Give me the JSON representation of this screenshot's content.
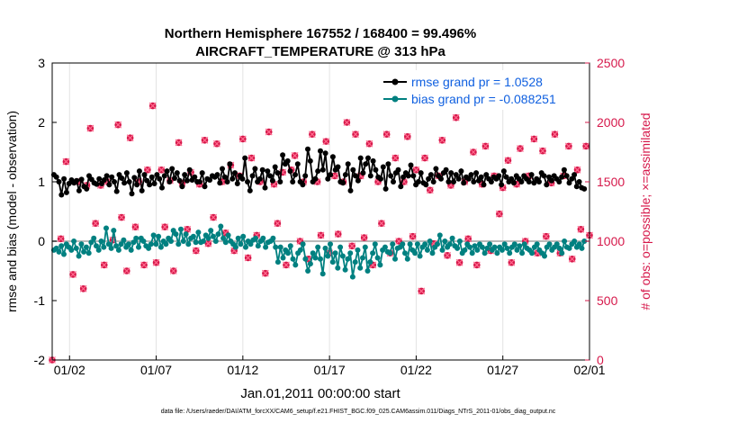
{
  "chart_data": {
    "type": "line",
    "title_line1": "Northern Hemisphere 167552 / 168400 = 99.496%",
    "title_line2": "AIRCRAFT_TEMPERATURE @ 313 hPa",
    "ylabel_left": "rmse and bias (model - observation)",
    "ylabel_right": "# of obs: o=possible; ×=assimilated",
    "xlabel": "Jan.01,2011 00:00:00 start",
    "footnote": "data file: /Users/raeder/DAI/ATM_forcXX/CAM6_setup/f.e21.FHIST_BGC.f09_025.CAM6assim.011/Diags_NTrS_2011-01/obs_diag_output.nc",
    "xlim": [
      0,
      31
    ],
    "ylim_left": [
      -2,
      3
    ],
    "ylim_right": [
      0,
      2500
    ],
    "x_ticks": [
      1,
      6,
      11,
      16,
      21,
      26,
      31
    ],
    "x_tick_labels": [
      "01/02",
      "01/07",
      "01/12",
      "01/17",
      "01/22",
      "01/27",
      "02/01"
    ],
    "y_left_ticks": [
      "3",
      "2",
      "1",
      "0",
      "-1",
      "-2"
    ],
    "y_left_tick_values": [
      3,
      2,
      1,
      0,
      -1,
      -2
    ],
    "y_right_ticks": [
      "2500",
      "2000",
      "1500",
      "1000",
      "500",
      "0"
    ],
    "y_right_tick_values": [
      2500,
      2000,
      1500,
      1000,
      500,
      0
    ],
    "legend_position": "top-right",
    "series": [
      {
        "name": "rmse grand pr = 1.0528",
        "axis": "left",
        "color": "#000000",
        "values": [
          1.12,
          1.08,
          1.0,
          0.78,
          1.05,
          0.82,
          0.97,
          1.03,
          0.98,
          1.02,
          0.85,
          1.04,
          0.92,
          0.88,
          1.1,
          1.04,
          0.98,
          0.96,
          1.05,
          0.97,
          1.03,
          1.1,
          0.95,
          1.08,
          1.0,
          0.84,
          1.12,
          1.06,
          0.98,
          1.15,
          1.0,
          0.8,
          1.07,
          0.95,
          1.18,
          0.85,
          1.12,
          1.02,
          0.95,
          1.08,
          0.97,
          1.12,
          1.05,
          0.9,
          1.1,
          1.18,
          1.0,
          1.22,
          1.06,
          1.15,
          1.02,
          0.92,
          1.12,
          1.02,
          1.2,
          1.03,
          1.08,
          1.0,
          1.0,
          1.15,
          0.92,
          1.05,
          1.03,
          1.1,
          1.08,
          1.12,
          0.98,
          1.22,
          1.08,
          1.0,
          1.3,
          1.05,
          1.15,
          0.97,
          1.1,
          1.05,
          1.4,
          1.0,
          0.85,
          1.1,
          1.22,
          1.0,
          1.05,
          1.2,
          0.9,
          1.18,
          1.1,
          1.02,
          1.25,
          1.15,
          1.0,
          1.45,
          1.3,
          1.35,
          1.18,
          1.0,
          1.12,
          1.3,
          1.0,
          0.95,
          1.1,
          1.55,
          1.35,
          1.0,
          1.05,
          1.18,
          1.52,
          1.2,
          1.48,
          1.05,
          1.12,
          1.42,
          1.2,
          1.25,
          1.0,
          0.98,
          1.12,
          1.3,
          0.85,
          1.2,
          1.1,
          1.02,
          1.4,
          1.15,
          1.3,
          1.4,
          1.1,
          1.35,
          1.2,
          1.08,
          1.05,
          1.25,
          0.88,
          1.3,
          1.1,
          1.0,
          1.15,
          1.2,
          0.92,
          1.08,
          1.15,
          1.1,
          1.28,
          1.1,
          0.95,
          1.0,
          1.15,
          0.98,
          0.95,
          1.05,
          1.12,
          1.0,
          1.22,
          1.1,
          1.05,
          1.15,
          1.2,
          1.0,
          1.15,
          1.0,
          1.12,
          1.05,
          1.18,
          0.98,
          1.08,
          1.05,
          1.12,
          1.0,
          1.15,
          1.02,
          1.08,
          0.95,
          1.12,
          1.05,
          1.0,
          1.08,
          1.05,
          1.1,
          0.95,
          1.18,
          1.08,
          1.0,
          1.05,
          0.98,
          1.1,
          1.05,
          1.0,
          1.1,
          1.05,
          1.0,
          1.12,
          0.98,
          1.05,
          1.0,
          1.15,
          1.1,
          0.95,
          1.08,
          1.02,
          1.1,
          1.05,
          1.0,
          1.08,
          1.2,
          1.1,
          0.98,
          1.05,
          1.12,
          0.92,
          1.0,
          0.9,
          0.88
        ]
      },
      {
        "name": "bias grand pr = -0.088251",
        "axis": "left",
        "color": "#008080",
        "values": [
          -0.15,
          -0.12,
          -0.18,
          -0.08,
          -0.22,
          -0.05,
          -0.1,
          -0.15,
          0.0,
          -0.12,
          -0.25,
          -0.05,
          -0.18,
          -0.1,
          -0.2,
          -0.02,
          0.05,
          -0.08,
          -0.15,
          0.0,
          -0.1,
          0.22,
          -0.05,
          -0.12,
          0.18,
          -0.08,
          -0.15,
          -0.05,
          0.02,
          -0.1,
          -0.05,
          -0.15,
          -0.02,
          0.05,
          -0.1,
          0.05,
          0.0,
          -0.08,
          -0.12,
          -0.05,
          0.1,
          -0.05,
          0.08,
          -0.1,
          0.0,
          -0.05,
          0.05,
          0.0,
          0.18,
          0.12,
          -0.05,
          0.2,
          0.0,
          0.12,
          -0.05,
          0.05,
          0.08,
          -0.02,
          0.15,
          -0.02,
          0.0,
          0.1,
          0.05,
          0.18,
          0.08,
          0.0,
          0.12,
          0.25,
          0.05,
          -0.02,
          0.1,
          0.0,
          -0.05,
          -0.1,
          0.05,
          -0.05,
          0.08,
          -0.1,
          0.0,
          -0.05,
          0.02,
          0.05,
          -0.08,
          0.0,
          0.05,
          -0.1,
          -0.02,
          0.0,
          0.05,
          -0.1,
          -0.35,
          -0.1,
          -0.28,
          -0.15,
          -0.2,
          -0.08,
          -0.3,
          -0.4,
          -0.2,
          -0.15,
          -0.05,
          -0.3,
          -0.5,
          -0.38,
          -0.2,
          -0.28,
          -0.1,
          -0.3,
          -0.55,
          -0.12,
          -0.25,
          -0.05,
          -0.35,
          -0.2,
          -0.45,
          -0.1,
          -0.25,
          -0.48,
          -0.3,
          -0.2,
          -0.6,
          -0.35,
          -0.15,
          -0.45,
          -0.28,
          -0.1,
          -0.5,
          -0.35,
          -0.2,
          -0.05,
          -0.28,
          -0.4,
          -0.15,
          -0.1,
          -0.18,
          -0.2,
          -0.05,
          -0.3,
          -0.12,
          -0.1,
          -0.05,
          -0.2,
          -0.3,
          -0.05,
          -0.15,
          -0.2,
          -0.05,
          -0.25,
          -0.1,
          -0.05,
          -0.15,
          0.0,
          -0.2,
          -0.1,
          -0.05,
          0.1,
          -0.15,
          0.0,
          -0.1,
          -0.05,
          0.05,
          -0.08,
          -0.12,
          0.0,
          -0.2,
          -0.15,
          -0.05,
          -0.1,
          -0.2,
          -0.08,
          -0.15,
          -0.05,
          -0.1,
          -0.2,
          -0.12,
          -0.05,
          -0.15,
          -0.1,
          -0.2,
          -0.1,
          -0.15,
          -0.05,
          -0.12,
          -0.2,
          -0.1,
          -0.05,
          -0.15,
          -0.08,
          -0.2,
          -0.05,
          -0.12,
          -0.15,
          -0.2,
          -0.1,
          -0.05,
          -0.15,
          -0.2,
          -0.25,
          -0.1,
          -0.05,
          -0.15,
          -0.1,
          -0.05,
          -0.12,
          -0.2,
          0.0,
          -0.1,
          -0.12,
          -0.05,
          0.0,
          -0.1,
          -0.05,
          -0.12,
          0.0
        ]
      },
      {
        "name": "obs possible",
        "axis": "right",
        "color": "#d6194b",
        "marker": "o",
        "x": [
          0,
          0.5,
          0.8,
          1.2,
          1.5,
          1.8,
          2.0,
          2.2,
          2.5,
          2.8,
          3.0,
          3.2,
          3.5,
          3.8,
          4.0,
          4.3,
          4.5,
          4.8,
          5.0,
          5.3,
          5.5,
          5.8,
          6.0,
          6.3,
          6.5,
          6.8,
          7.0,
          7.3,
          7.5,
          7.8,
          8.0,
          8.3,
          8.5,
          8.8,
          9.0,
          9.3,
          9.5,
          9.8,
          10.0,
          10.3,
          10.5,
          10.8,
          11.0,
          11.3,
          11.5,
          11.8,
          12.0,
          12.3,
          12.5,
          12.8,
          13.0,
          13.3,
          13.5,
          13.8,
          14.0,
          14.3,
          14.5,
          14.8,
          15.0,
          15.3,
          15.5,
          15.8,
          16.0,
          16.3,
          16.5,
          16.8,
          17.0,
          17.3,
          17.5,
          17.8,
          18.0,
          18.3,
          18.5,
          18.8,
          19.0,
          19.3,
          19.5,
          19.8,
          20.0,
          20.3,
          20.5,
          20.8,
          21.0,
          21.3,
          21.5,
          21.8,
          22.0,
          22.3,
          22.5,
          22.8,
          23.0,
          23.3,
          23.5,
          23.8,
          24.0,
          24.3,
          24.5,
          24.8,
          25.0,
          25.3,
          25.5,
          25.8,
          26.0,
          26.3,
          26.5,
          26.8,
          27.0,
          27.3,
          27.5,
          27.8,
          28.0,
          28.3,
          28.5,
          28.8,
          29.0,
          29.3,
          29.5,
          29.8,
          30.0,
          30.3,
          30.5,
          30.8,
          31.0
        ],
        "values": [
          0,
          1020,
          1670,
          720,
          1500,
          600,
          1470,
          1950,
          1150,
          1470,
          800,
          1500,
          1010,
          1980,
          1200,
          750,
          1870,
          1120,
          1500,
          800,
          1600,
          2140,
          820,
          1600,
          1120,
          1510,
          750,
          1830,
          1490,
          1100,
          1580,
          920,
          1480,
          1850,
          980,
          1200,
          1820,
          1500,
          1070,
          1640,
          920,
          1550,
          1860,
          860,
          1700,
          1050,
          1500,
          730,
          1920,
          1480,
          1150,
          1580,
          800,
          1600,
          1720,
          1000,
          1500,
          850,
          1900,
          1500,
          1050,
          1840,
          900,
          1550,
          1060,
          1500,
          2000,
          960,
          1900,
          1550,
          1030,
          1820,
          800,
          1500,
          1150,
          1900,
          900,
          1700,
          1000,
          1500,
          1880,
          1040,
          1600,
          580,
          1700,
          1430,
          980,
          1550,
          1850,
          880,
          1470,
          2040,
          820,
          1500,
          1020,
          1750,
          800,
          1480,
          1800,
          920,
          1550,
          1230,
          1450,
          1680,
          820,
          1480,
          1780,
          1000,
          1550,
          1860,
          900,
          1760,
          1040,
          1490,
          1900,
          900,
          1550,
          1800,
          850,
          1600,
          1100,
          1800,
          1050
        ]
      }
    ]
  }
}
